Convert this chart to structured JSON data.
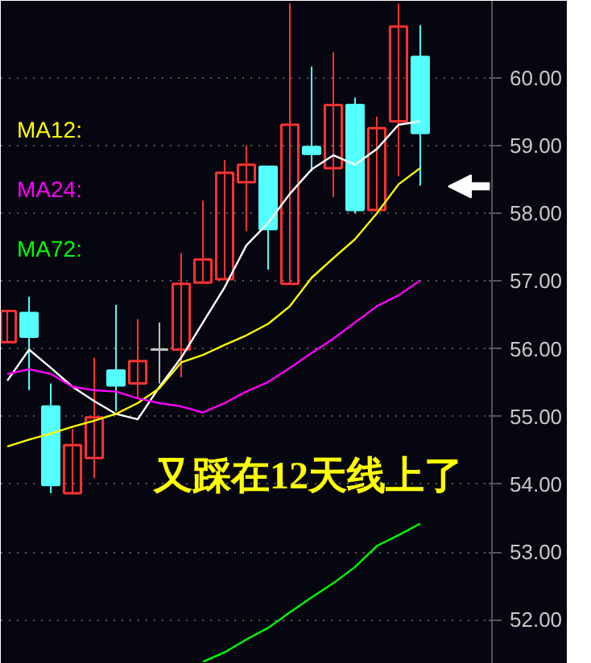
{
  "chart_data": {
    "type": "candlestick",
    "categories": [
      null,
      null,
      null,
      null,
      null,
      null,
      null,
      null,
      null,
      null,
      null,
      null,
      null,
      null,
      null,
      null,
      null,
      null,
      null,
      null
    ],
    "ohlc": [
      [
        56.1,
        56.56,
        56.1,
        56.56
      ],
      [
        56.53,
        56.77,
        55.39,
        56.18
      ],
      [
        55.15,
        55.49,
        53.87,
        53.99
      ],
      [
        53.87,
        54.82,
        53.85,
        54.58
      ],
      [
        54.39,
        55.87,
        54.09,
        54.99
      ],
      [
        55.68,
        56.65,
        55.08,
        55.46
      ],
      [
        55.49,
        56.44,
        55.27,
        55.82
      ],
      [
        55.99,
        56.39,
        55.49,
        55.99
      ],
      [
        55.99,
        57.41,
        55.58,
        56.96
      ],
      [
        56.98,
        58.19,
        56.98,
        57.32
      ],
      [
        57.03,
        58.79,
        57.03,
        58.6
      ],
      [
        58.46,
        59.0,
        57.74,
        58.72
      ],
      [
        58.69,
        58.69,
        57.17,
        57.77
      ],
      [
        56.96,
        61.1,
        56.96,
        59.31
      ],
      [
        58.98,
        60.17,
        58.62,
        58.88
      ],
      [
        58.67,
        60.38,
        58.24,
        59.6
      ],
      [
        59.6,
        59.71,
        58.0,
        58.05
      ],
      [
        58.05,
        59.43,
        58.05,
        59.26
      ],
      [
        59.36,
        61.1,
        58.55,
        60.76
      ],
      [
        60.31,
        60.78,
        58.41,
        59.19
      ]
    ],
    "colors": [
      "#ff3232",
      "#54ffff",
      "#54ffff",
      "#ff3232",
      "#ff3232",
      "#54ffff",
      "#ff3232",
      "#c0c0c0",
      "#ff3232",
      "#ff3232",
      "#ff3232",
      "#ff3232",
      "#54ffff",
      "#ff3232",
      "#54ffff",
      "#ff3232",
      "#54ffff",
      "#ff3232",
      "#ff3232",
      "#54ffff"
    ],
    "series": [
      {
        "type": "line",
        "color": "#ffffff",
        "values": [
          55.53,
          55.99,
          55.72,
          55.44,
          55.23,
          55.04,
          54.96,
          55.44,
          55.87,
          56.39,
          56.91,
          57.53,
          57.86,
          58.29,
          58.65,
          58.86,
          58.72,
          58.95,
          59.31,
          59.36
        ]
      },
      {
        "type": "line",
        "name": "MA12:",
        "color": "#ffff00",
        "values": [
          54.56,
          54.66,
          54.75,
          54.85,
          54.94,
          55.04,
          55.2,
          55.42,
          55.8,
          55.91,
          56.06,
          56.2,
          56.37,
          56.63,
          57.05,
          57.34,
          57.62,
          58.0,
          58.43,
          58.67
        ]
      },
      {
        "type": "line",
        "name": "MA24:",
        "color": "#ff00ff",
        "values": [
          55.63,
          55.7,
          55.63,
          55.44,
          55.39,
          55.37,
          55.27,
          55.2,
          55.15,
          55.06,
          55.2,
          55.37,
          55.51,
          55.72,
          55.94,
          56.15,
          56.39,
          56.63,
          56.79,
          57.01
        ]
      },
      {
        "type": "line",
        "name": "MA72:",
        "color": "#00ff00",
        "values": [
          null,
          null,
          null,
          null,
          null,
          null,
          null,
          null,
          null,
          51.38,
          51.52,
          51.71,
          51.88,
          52.11,
          52.33,
          52.54,
          52.78,
          53.09,
          53.25,
          53.42
        ]
      }
    ],
    "ylim": [
      51.35,
      61.14
    ],
    "yticks": [
      {
        "value": 52,
        "label": "52.00"
      },
      {
        "value": 53,
        "label": "53.00"
      },
      {
        "value": 54,
        "label": "54.00"
      },
      {
        "value": 55,
        "label": "55.00"
      },
      {
        "value": 56,
        "label": "56.00"
      },
      {
        "value": 57,
        "label": "57.00"
      },
      {
        "value": 58,
        "label": "58.00"
      },
      {
        "value": 59,
        "label": "59.00"
      },
      {
        "value": 60,
        "label": "60.00"
      }
    ],
    "tick_labels": "y",
    "grid": "y",
    "legend": "left",
    "annotations": [
      "又踩在12天线上了"
    ]
  }
}
